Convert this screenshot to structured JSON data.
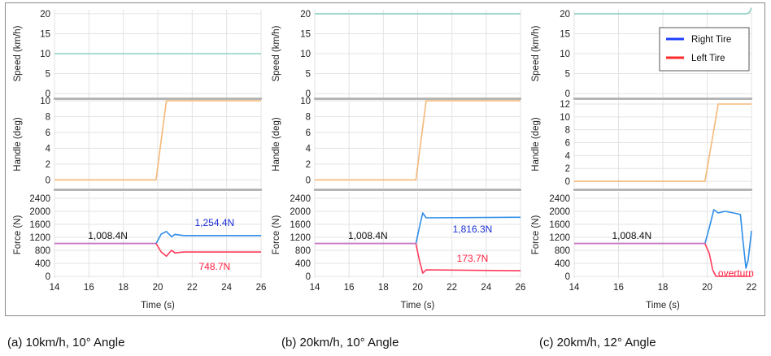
{
  "legend": [
    {
      "label": "Right Tire",
      "color": "#1e40ff"
    },
    {
      "label": "Left Tire",
      "color": "#ff2a2a"
    }
  ],
  "colors": {
    "speed_line": "#8fd1c4",
    "handle_line": "#f5b878",
    "right_force": "#2e8ee8",
    "left_force": "#ff3b5c",
    "both_force": "#c879c4",
    "right_label": "#1a2dd6",
    "left_label": "#ff2040",
    "grid": "#e3e3e3",
    "separator": "#b5b5b5"
  },
  "captions": [
    "(a) 10km/h, 10° Angle",
    "(b) 20km/h, 10° Angle",
    "(c) 20km/h, 12° Angle"
  ],
  "chart_data": [
    {
      "type": "line",
      "panel": "a",
      "xlabel": "Time (s)",
      "xlim": [
        14,
        26
      ],
      "xticks": [
        14,
        16,
        18,
        20,
        22,
        24,
        26
      ],
      "subplots": [
        {
          "ylabel": "Speed (km/h)",
          "ylim": [
            -1,
            21
          ],
          "yticks": [
            0,
            5,
            10,
            15,
            20
          ],
          "series": [
            {
              "x": [
                14,
                26
              ],
              "y": [
                10,
                10
              ]
            }
          ]
        },
        {
          "ylabel": "Handle (deg)",
          "ylim": [
            -1,
            10
          ],
          "yticks": [
            0,
            2,
            4,
            6,
            8,
            10
          ],
          "series": [
            {
              "x": [
                14,
                19.9,
                20.2,
                20.5,
                26
              ],
              "y": [
                0,
                0,
                5,
                10,
                10
              ]
            }
          ]
        },
        {
          "ylabel": "Force (N)",
          "ylim": [
            -50,
            2600
          ],
          "yticks": [
            0,
            400,
            800,
            1200,
            1600,
            2000,
            2400
          ],
          "series": [
            {
              "x": [
                14,
                19.9,
                20.2,
                20.5,
                20.8,
                21,
                21.5,
                26
              ],
              "y": [
                1008.4,
                1008.4,
                1300,
                1380,
                1220,
                1290,
                1254.4,
                1254.4
              ]
            },
            {
              "x": [
                14,
                19.9,
                20.2,
                20.5,
                20.8,
                21,
                21.5,
                26
              ],
              "y": [
                1008.4,
                1008.4,
                750,
                620,
                800,
                720,
                748.7,
                748.7
              ]
            }
          ]
        }
      ],
      "annotations": [
        {
          "text": "1,008.4N",
          "x": 17.1,
          "y": 1250
        },
        {
          "text": "1,254.4N",
          "x": 23.3,
          "y": 1650
        },
        {
          "text": "748.7N",
          "x": 23.3,
          "y": 300
        }
      ]
    },
    {
      "type": "line",
      "panel": "b",
      "xlabel": "Time (s)",
      "xlim": [
        14,
        26
      ],
      "xticks": [
        14,
        16,
        18,
        20,
        22,
        24,
        26
      ],
      "subplots": [
        {
          "ylabel": "Speed (km/h)",
          "ylim": [
            -1,
            21
          ],
          "yticks": [
            0,
            5,
            10,
            15,
            20
          ],
          "series": [
            {
              "x": [
                14,
                26
              ],
              "y": [
                20,
                20
              ]
            }
          ]
        },
        {
          "ylabel": "Handle (deg)",
          "ylim": [
            -1,
            10
          ],
          "yticks": [
            0,
            2,
            4,
            6,
            8,
            10
          ],
          "series": [
            {
              "x": [
                14,
                19.9,
                20.2,
                20.5,
                26
              ],
              "y": [
                0,
                0,
                5,
                10,
                10
              ]
            }
          ]
        },
        {
          "ylabel": "Force (N)",
          "ylim": [
            -50,
            2600
          ],
          "yticks": [
            0,
            400,
            800,
            1200,
            1600,
            2000,
            2400
          ],
          "series": [
            {
              "x": [
                14,
                19.9,
                20.1,
                20.3,
                20.5,
                26
              ],
              "y": [
                1008.4,
                1008.4,
                1500,
                1950,
                1800,
                1816.3
              ]
            },
            {
              "x": [
                14,
                19.9,
                20.1,
                20.3,
                20.5,
                26
              ],
              "y": [
                1008.4,
                1008.4,
                500,
                100,
                200,
                173.7
              ]
            }
          ]
        }
      ],
      "annotations": [
        {
          "text": "1,008.4N",
          "x": 17.1,
          "y": 1250
        },
        {
          "text": "1,816.3N",
          "x": 23.2,
          "y": 1450
        },
        {
          "text": "173.7N",
          "x": 23.2,
          "y": 550
        }
      ]
    },
    {
      "type": "line",
      "panel": "c",
      "xlabel": "Time (s)",
      "xlim": [
        14,
        22
      ],
      "xticks": [
        14,
        16,
        18,
        20,
        22
      ],
      "subplots": [
        {
          "ylabel": "Speed (km/h)",
          "ylim": [
            -1,
            21
          ],
          "yticks": [
            0,
            5,
            10,
            15,
            20
          ],
          "series": [
            {
              "x": [
                14,
                21.8,
                21.9,
                22
              ],
              "y": [
                20,
                20,
                20.3,
                21.5
              ]
            }
          ]
        },
        {
          "ylabel": "Handle (deg)",
          "ylim": [
            -1,
            12.5
          ],
          "yticks": [
            0,
            2,
            4,
            6,
            8,
            10,
            12
          ],
          "series": [
            {
              "x": [
                14,
                19.9,
                20.2,
                20.5,
                22
              ],
              "y": [
                0,
                0,
                6,
                12,
                12
              ]
            }
          ]
        },
        {
          "ylabel": "Force (N)",
          "ylim": [
            -50,
            2600
          ],
          "yticks": [
            0,
            400,
            800,
            1200,
            1600,
            2000,
            2400
          ],
          "series": [
            {
              "x": [
                14,
                19.9,
                20.1,
                20.3,
                20.5,
                20.8,
                21.2,
                21.5,
                21.6,
                21.75,
                21.85,
                22
              ],
              "y": [
                1008.4,
                1008.4,
                1500,
                2050,
                1950,
                2000,
                1950,
                1900,
                1200,
                250,
                500,
                1400
              ]
            },
            {
              "x": [
                14,
                19.9,
                20.1,
                20.25,
                20.4,
                22
              ],
              "y": [
                1008.4,
                1008.4,
                700,
                200,
                0,
                0
              ]
            }
          ]
        }
      ],
      "annotations": [
        {
          "text": "1,008.4N",
          "x": 16.6,
          "y": 1250
        },
        {
          "text": "overturn",
          "x": 21.3,
          "y": 100
        }
      ],
      "legend_position": "top-right"
    }
  ]
}
